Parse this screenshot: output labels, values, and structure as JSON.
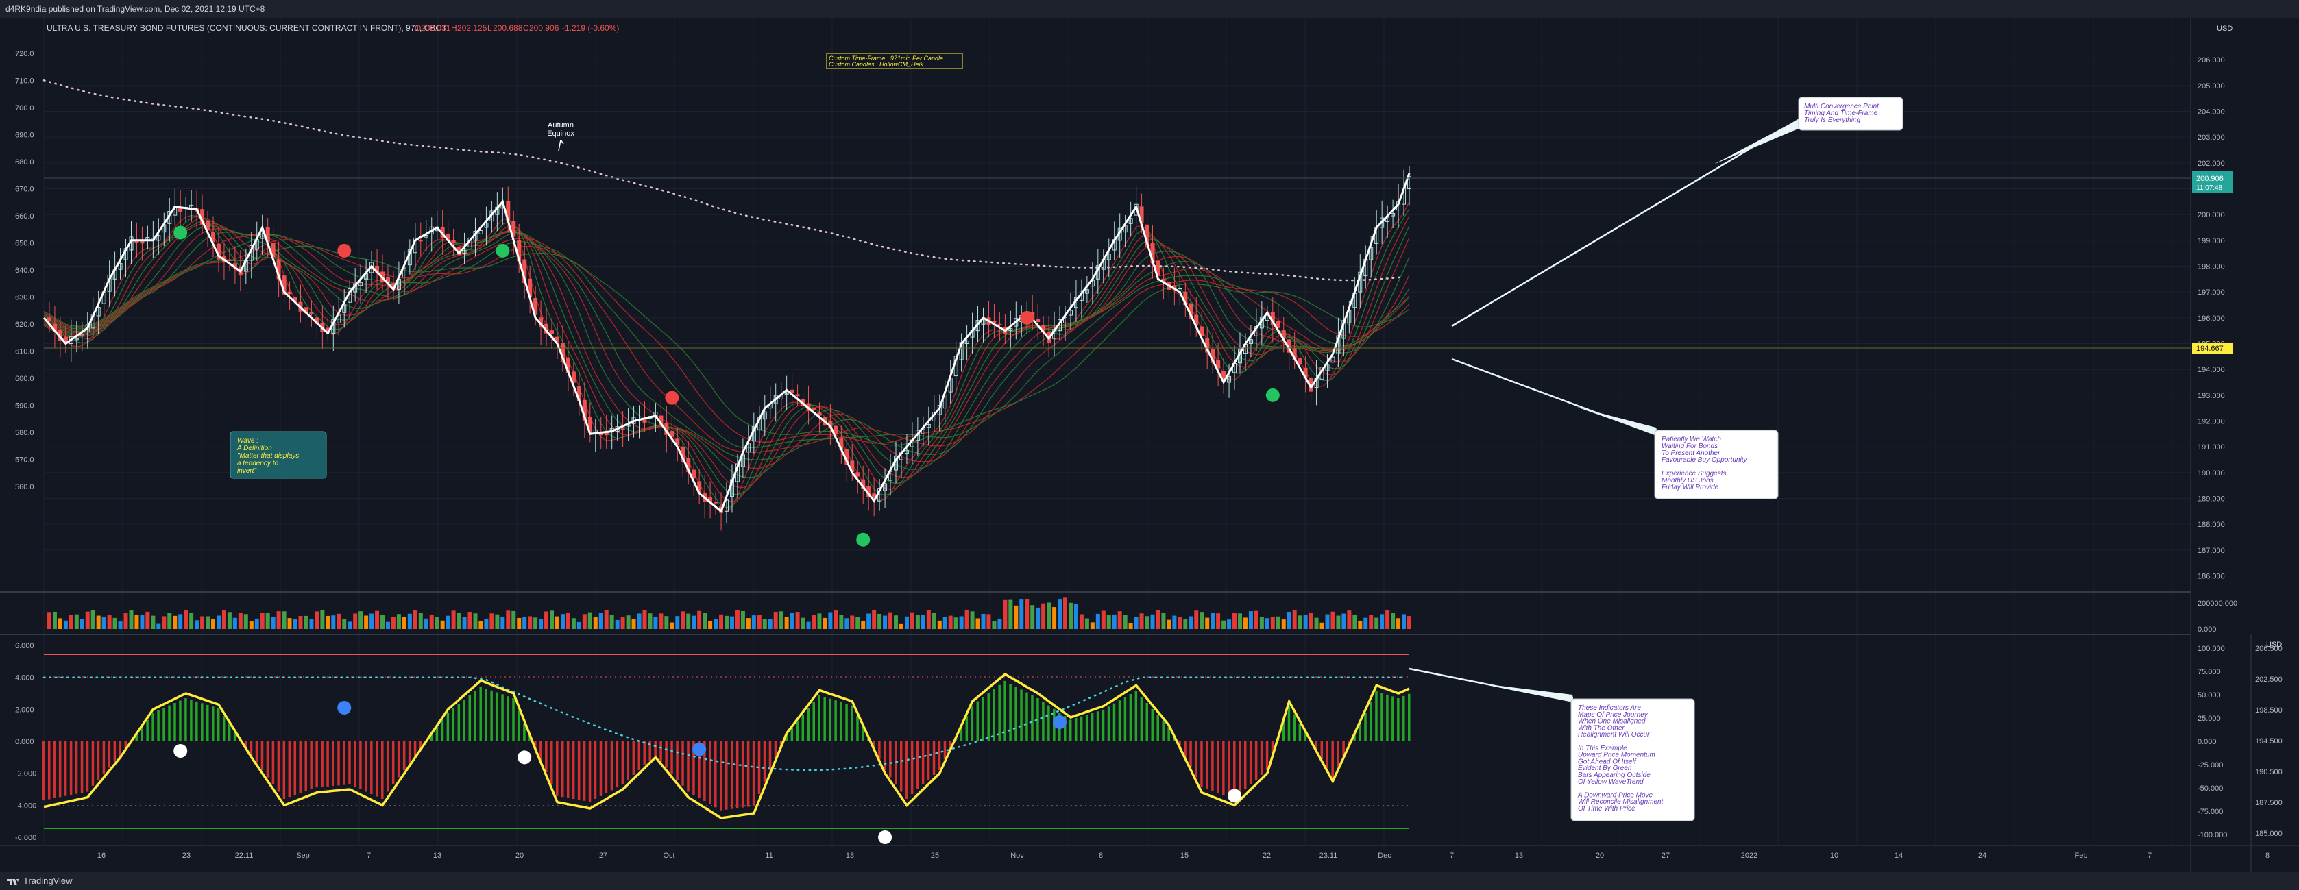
{
  "header": {
    "published_line": "d4RK9ndia published on TradingView.com, Dec 02, 2021 12:19 UTC+8"
  },
  "footer": {
    "brand": "TradingView"
  },
  "colors": {
    "background": "#131722",
    "grid": "#1e2230",
    "up": "#b2dfdb",
    "down": "#ef5350",
    "ma_white": "#ffffff",
    "osc_yellow": "#ffeb3b",
    "hist_green": "#26a626",
    "hist_red": "#d32f2f",
    "last_price": "#26a69a",
    "price_line_yellow": "#ffeb3b"
  },
  "chart_data": [
    {
      "type": "line",
      "title": "ULTRA U.S. TREASURY BOND FUTURES (CONTINUOUS: CURRENT CONTRACT IN FRONT), 971, CBOT",
      "ohlc_text": {
        "O": "202.031",
        "H": "202.125",
        "L": "200.688",
        "C": "200.906",
        "change": "-1.219 (-0.60%)"
      },
      "currency": "USD",
      "left_axis_ticks": [
        "720.0",
        "710.0",
        "700.0",
        "690.0",
        "680.0",
        "670.0",
        "660.0",
        "650.0",
        "640.0",
        "630.0",
        "620.0",
        "610.0",
        "600.0",
        "590.0",
        "580.0",
        "570.0",
        "560.0"
      ],
      "right_axis_ticks": [
        "206.000",
        "205.000",
        "204.000",
        "203.000",
        "202.000",
        "201.000",
        "200.000",
        "199.000",
        "198.000",
        "197.000",
        "196.000",
        "195.000",
        "194.000",
        "193.000",
        "192.000",
        "191.000",
        "190.000",
        "189.000",
        "188.000",
        "187.000",
        "186.000"
      ],
      "ylim": [
        185.8,
        207.2
      ],
      "x_ticks": [
        "16",
        "23",
        "22:11",
        "Sep",
        "7",
        "13",
        "20",
        "27",
        "Oct",
        "11",
        "18",
        "25",
        "Nov",
        "8",
        "15",
        "22",
        "23:11",
        "Dec",
        "7",
        "13",
        "20",
        "27",
        "2022",
        "10",
        "14",
        "24",
        "Feb",
        "7",
        "8"
      ],
      "close_series": [
        {
          "x": 0,
          "y": 196.0
        },
        {
          "x": 4,
          "y": 195.0
        },
        {
          "x": 8,
          "y": 195.6
        },
        {
          "x": 12,
          "y": 197.5
        },
        {
          "x": 16,
          "y": 199.0
        },
        {
          "x": 20,
          "y": 199.0
        },
        {
          "x": 24,
          "y": 200.3
        },
        {
          "x": 28,
          "y": 200.2
        },
        {
          "x": 32,
          "y": 198.4
        },
        {
          "x": 36,
          "y": 197.8
        },
        {
          "x": 40,
          "y": 199.5
        },
        {
          "x": 44,
          "y": 197.0
        },
        {
          "x": 48,
          "y": 196.2
        },
        {
          "x": 52,
          "y": 195.4
        },
        {
          "x": 56,
          "y": 197.0
        },
        {
          "x": 60,
          "y": 198.0
        },
        {
          "x": 64,
          "y": 197.1
        },
        {
          "x": 68,
          "y": 199.0
        },
        {
          "x": 72,
          "y": 199.5
        },
        {
          "x": 76,
          "y": 198.5
        },
        {
          "x": 80,
          "y": 199.5
        },
        {
          "x": 84,
          "y": 200.5
        },
        {
          "x": 86,
          "y": 199.0
        },
        {
          "x": 90,
          "y": 196.0
        },
        {
          "x": 94,
          "y": 195.0
        },
        {
          "x": 98,
          "y": 192.8
        },
        {
          "x": 100,
          "y": 191.5
        },
        {
          "x": 104,
          "y": 191.6
        },
        {
          "x": 108,
          "y": 192.0
        },
        {
          "x": 112,
          "y": 192.2
        },
        {
          "x": 116,
          "y": 191.0
        },
        {
          "x": 120,
          "y": 189.2
        },
        {
          "x": 124,
          "y": 188.5
        },
        {
          "x": 128,
          "y": 190.8
        },
        {
          "x": 132,
          "y": 192.5
        },
        {
          "x": 136,
          "y": 193.2
        },
        {
          "x": 140,
          "y": 192.5
        },
        {
          "x": 144,
          "y": 191.8
        },
        {
          "x": 148,
          "y": 190.0
        },
        {
          "x": 152,
          "y": 188.9
        },
        {
          "x": 156,
          "y": 190.5
        },
        {
          "x": 160,
          "y": 191.5
        },
        {
          "x": 164,
          "y": 192.5
        },
        {
          "x": 168,
          "y": 195.0
        },
        {
          "x": 172,
          "y": 196.0
        },
        {
          "x": 176,
          "y": 195.5
        },
        {
          "x": 180,
          "y": 196.2
        },
        {
          "x": 184,
          "y": 195.2
        },
        {
          "x": 188,
          "y": 196.4
        },
        {
          "x": 192,
          "y": 197.5
        },
        {
          "x": 196,
          "y": 199.0
        },
        {
          "x": 200,
          "y": 200.3
        },
        {
          "x": 204,
          "y": 197.5
        },
        {
          "x": 208,
          "y": 197.0
        },
        {
          "x": 212,
          "y": 195.2
        },
        {
          "x": 216,
          "y": 193.5
        },
        {
          "x": 220,
          "y": 195.0
        },
        {
          "x": 224,
          "y": 196.2
        },
        {
          "x": 228,
          "y": 194.8
        },
        {
          "x": 232,
          "y": 193.3
        },
        {
          "x": 236,
          "y": 194.6
        },
        {
          "x": 240,
          "y": 197.0
        },
        {
          "x": 244,
          "y": 199.5
        },
        {
          "x": 248,
          "y": 200.4
        },
        {
          "x": 250,
          "y": 201.6
        }
      ],
      "annotations": [
        "Autumn\nEquinox",
        "Custom Time-Frame : 971min Per Candle\nCustom Candles : HollowCM_Heik",
        "Wave :\nA Definition\n\"Matter that displays\na tendency to\ninvert\"",
        "Multi Convergence Point\nTiming And Time-Frame\nTruly Is Everything",
        "Patiently We Watch\nWaiting For Bonds\nTo Present Another\nFavourable Buy Opportunity\n\nExperience Suggests\nMonthly US Jobs\nFriday Will Provide",
        "These Indicators Are\nMaps Of Price Journey\nWhen One Misaligned\nWith The Other\nRealignment Will Occur\n\nIn This Example\nUpward Price Momentum\nGot Ahead Of Itself\nEvident By Green\nBars Appearing Outside\nOf Yellow WaveTrend\n\nA Downward Price Move\nWill Reconcile Misalignment\nOf Time With Price"
      ],
      "price_labels": [
        {
          "value": 200.906,
          "text": "200.906",
          "sub": "11:07:48"
        },
        {
          "value": 194.667,
          "text": "194.667"
        }
      ]
    },
    {
      "type": "bar",
      "title": "Volume",
      "y_ticks": [
        "200000.000",
        "0.000"
      ]
    },
    {
      "type": "line",
      "title": "Oscillator",
      "left_ticks": [
        "6.000",
        "4.000",
        "2.000",
        "0.000",
        "-2.000",
        "-4.000",
        "-6.000"
      ],
      "right_ticks": [
        "100.000",
        "75.000",
        "50.000",
        "25.000",
        "0.000",
        "-25.000",
        "-50.000",
        "-75.000",
        "-100.000"
      ],
      "far_right_ticks": [
        "206.500",
        "202.500",
        "198.500",
        "194.500",
        "190.500",
        "187.500",
        "185.000"
      ],
      "currency": "USD",
      "ylim": [
        -6,
        6
      ],
      "wave": [
        {
          "x": 0,
          "y": -4.1
        },
        {
          "x": 8,
          "y": -3.5
        },
        {
          "x": 14,
          "y": -1.0
        },
        {
          "x": 20,
          "y": 2.0
        },
        {
          "x": 26,
          "y": 3.0
        },
        {
          "x": 32,
          "y": 2.3
        },
        {
          "x": 38,
          "y": -1.0
        },
        {
          "x": 44,
          "y": -4.0
        },
        {
          "x": 50,
          "y": -3.2
        },
        {
          "x": 56,
          "y": -3.0
        },
        {
          "x": 62,
          "y": -4.0
        },
        {
          "x": 68,
          "y": -1.0
        },
        {
          "x": 74,
          "y": 2.0
        },
        {
          "x": 80,
          "y": 3.8
        },
        {
          "x": 86,
          "y": 3.0
        },
        {
          "x": 90,
          "y": -0.5
        },
        {
          "x": 94,
          "y": -3.8
        },
        {
          "x": 100,
          "y": -4.2
        },
        {
          "x": 106,
          "y": -3.0
        },
        {
          "x": 112,
          "y": -1.0
        },
        {
          "x": 118,
          "y": -3.5
        },
        {
          "x": 124,
          "y": -4.8
        },
        {
          "x": 130,
          "y": -4.5
        },
        {
          "x": 136,
          "y": 0.5
        },
        {
          "x": 142,
          "y": 3.2
        },
        {
          "x": 148,
          "y": 2.5
        },
        {
          "x": 154,
          "y": -2.0
        },
        {
          "x": 158,
          "y": -4.0
        },
        {
          "x": 164,
          "y": -2.0
        },
        {
          "x": 170,
          "y": 2.5
        },
        {
          "x": 176,
          "y": 4.2
        },
        {
          "x": 182,
          "y": 3.0
        },
        {
          "x": 188,
          "y": 1.5
        },
        {
          "x": 194,
          "y": 2.2
        },
        {
          "x": 200,
          "y": 3.5
        },
        {
          "x": 206,
          "y": 1.0
        },
        {
          "x": 212,
          "y": -3.2
        },
        {
          "x": 218,
          "y": -4.0
        },
        {
          "x": 224,
          "y": -2.0
        },
        {
          "x": 228,
          "y": 2.5
        },
        {
          "x": 232,
          "y": 0.0
        },
        {
          "x": 236,
          "y": -2.5
        },
        {
          "x": 240,
          "y": 0.5
        },
        {
          "x": 244,
          "y": 3.5
        },
        {
          "x": 248,
          "y": 3.0
        },
        {
          "x": 250,
          "y": 3.3
        }
      ]
    }
  ]
}
